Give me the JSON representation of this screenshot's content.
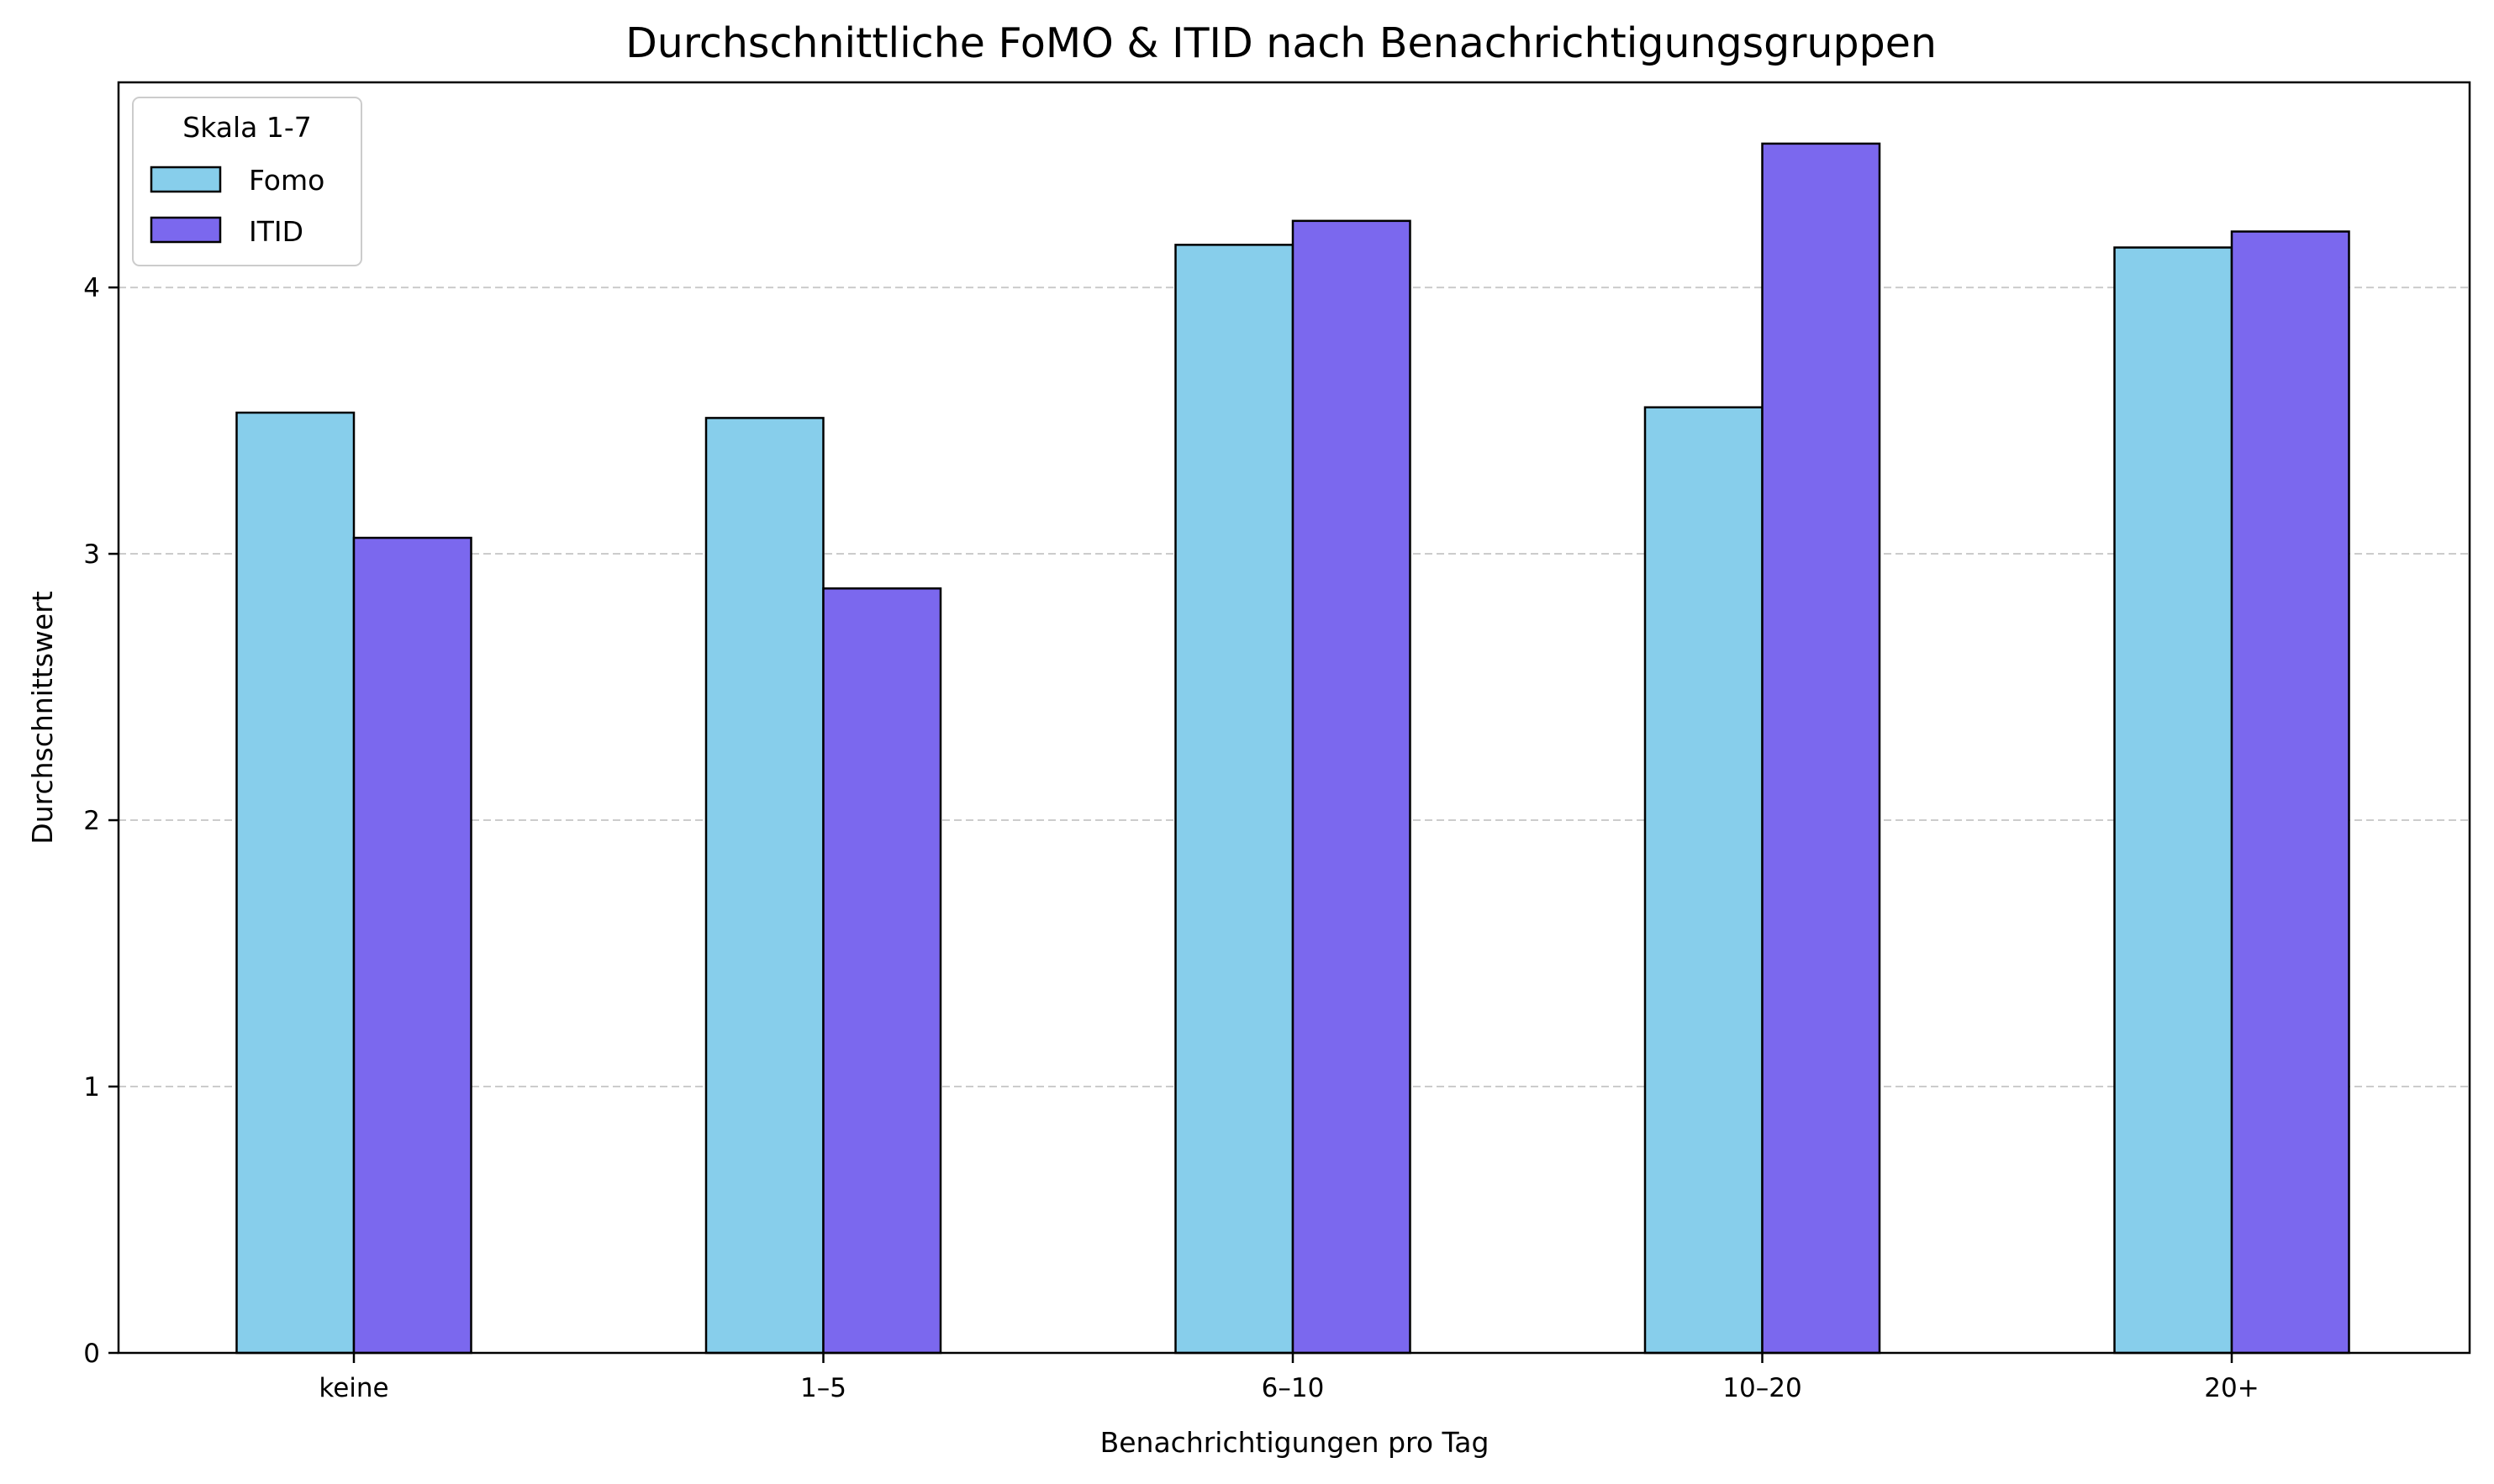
{
  "chart_data": {
    "type": "bar",
    "title": "Durchschnittliche FoMO & ITID nach Benachrichtigungsgruppen",
    "xlabel": "Benachrichtigungen pro Tag",
    "ylabel": "Durchschnittswert",
    "categories": [
      "keine",
      "1–5",
      "6–10",
      "10–20",
      "20+"
    ],
    "series": [
      {
        "name": "Fomo",
        "color": "#87ceeb",
        "values": [
          3.53,
          3.51,
          4.16,
          3.55,
          4.15
        ]
      },
      {
        "name": "ITID",
        "color": "#7b68ee",
        "values": [
          3.06,
          2.87,
          4.25,
          4.54,
          4.21
        ]
      }
    ],
    "ylim": [
      0,
      4.77
    ],
    "yticks": [
      0,
      1,
      2,
      3,
      4
    ],
    "grid": "y-dashed",
    "legend": {
      "title": "Skala 1-7",
      "placement": "top-left"
    }
  }
}
